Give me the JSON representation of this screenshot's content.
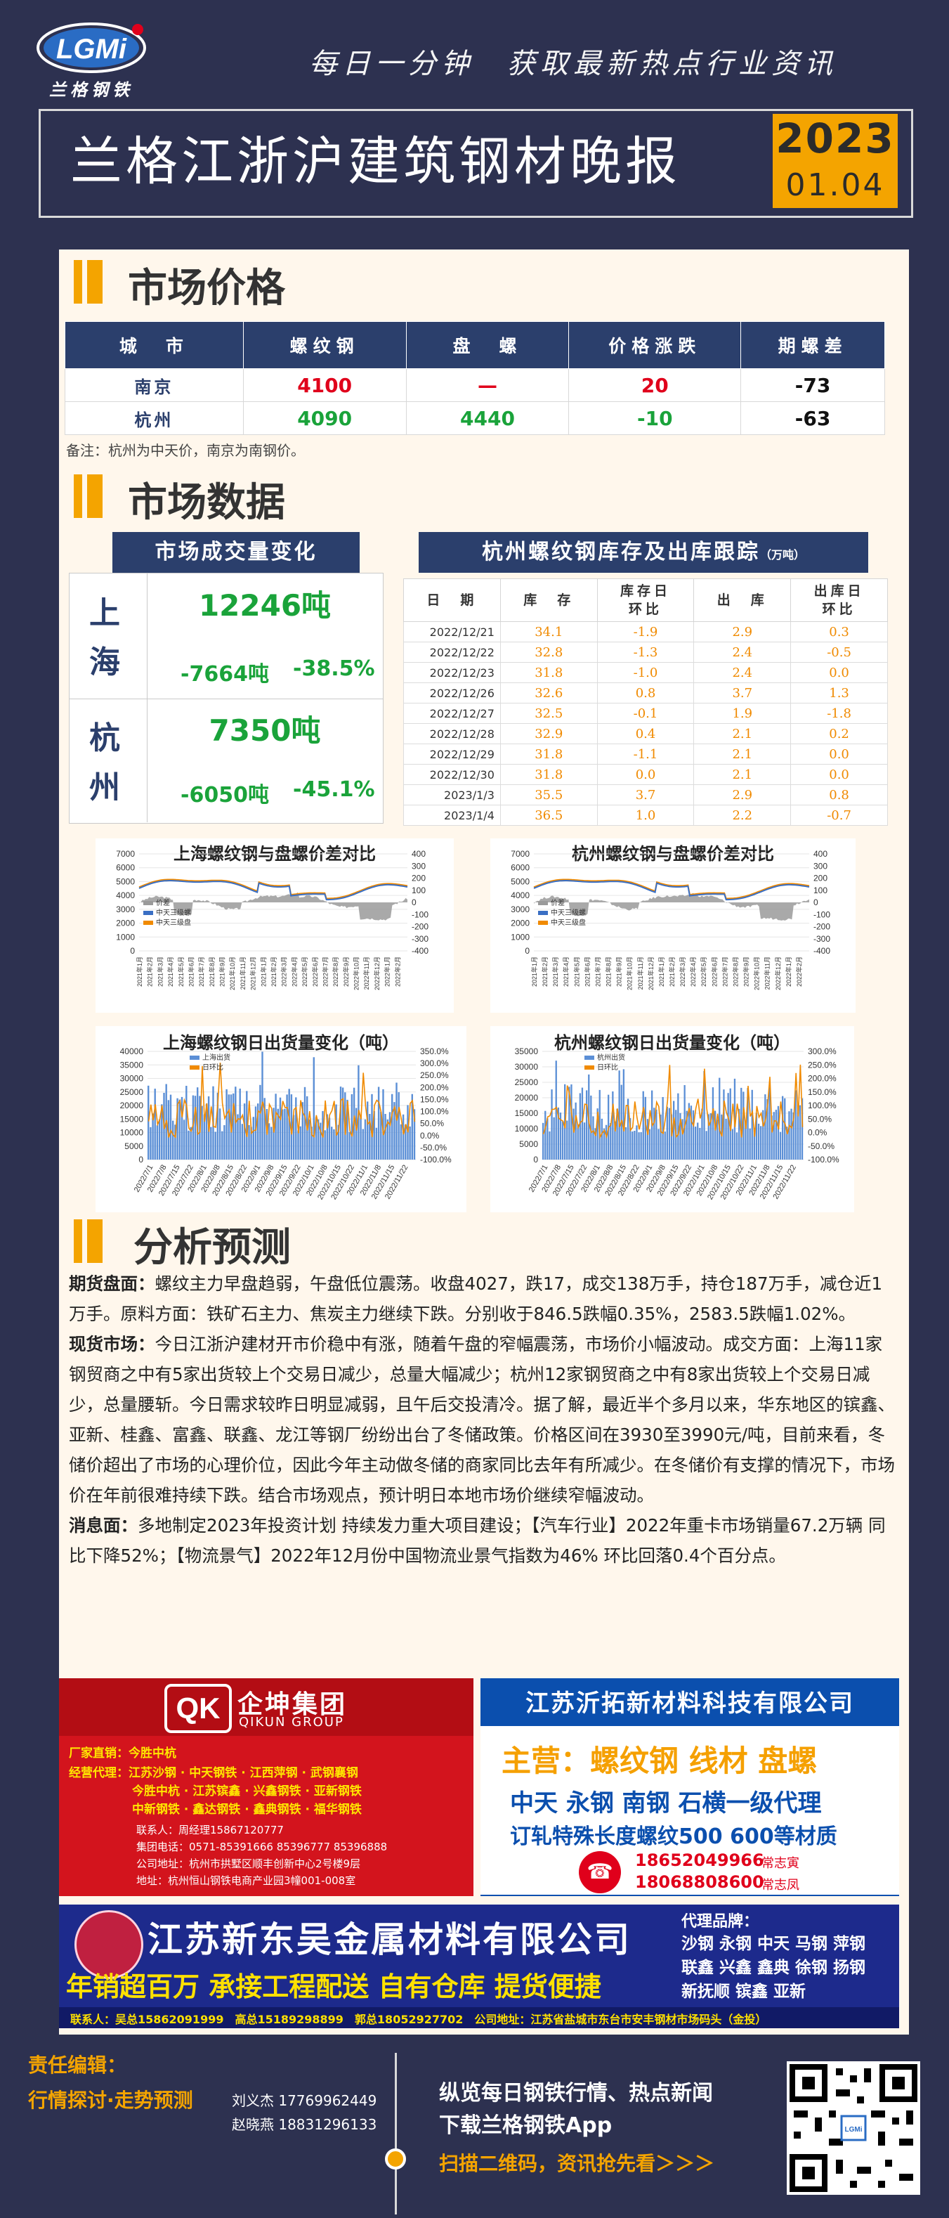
{
  "brand": {
    "logo_text": "LGMi",
    "logo_sub": "兰格钢铁"
  },
  "slogan": "每日一分钟　获取最新热点行业资讯",
  "title": "兰格江浙沪建筑钢材晚报",
  "date": {
    "year": "2023",
    "mmdd": "01.04"
  },
  "sections": {
    "price": "市场价格",
    "data": "市场数据",
    "analysis": "分析预测"
  },
  "price_table": {
    "headers": [
      "城　市",
      "螺纹钢",
      "盘　螺",
      "价格涨跌",
      "期螺差"
    ],
    "rows": [
      {
        "city": "南京",
        "rebar": "4100",
        "coil": "—",
        "change": "20",
        "spread": "-73"
      },
      {
        "city": "杭州",
        "rebar": "4090",
        "coil": "4440",
        "change": "-10",
        "spread": "-63"
      }
    ],
    "note": "备注：杭州为中天价，南京为南钢价。"
  },
  "volume": {
    "title": "市场成交量变化",
    "rows": [
      {
        "city": "上海",
        "volume": "12246吨",
        "delta": "-7664吨",
        "pct": "-38.5%"
      },
      {
        "city": "杭州",
        "volume": "7350吨",
        "delta": "-6050吨",
        "pct": "-45.1%"
      }
    ]
  },
  "inventory": {
    "title": "杭州螺纹钢库存及出库跟踪",
    "unit": "（万吨）",
    "headers": [
      "日　期",
      "库　存",
      "库存日环比",
      "出　库",
      "出库日环比"
    ],
    "rows": [
      [
        "2022/12/21",
        "34.1",
        "-1.9",
        "2.9",
        "0.3"
      ],
      [
        "2022/12/22",
        "32.8",
        "-1.3",
        "2.4",
        "-0.5"
      ],
      [
        "2022/12/23",
        "31.8",
        "-1.0",
        "2.4",
        "0.0"
      ],
      [
        "2022/12/26",
        "32.6",
        "0.8",
        "3.7",
        "1.3"
      ],
      [
        "2022/12/27",
        "32.5",
        "-0.1",
        "1.9",
        "-1.8"
      ],
      [
        "2022/12/28",
        "32.9",
        "0.4",
        "2.1",
        "0.2"
      ],
      [
        "2022/12/29",
        "31.8",
        "-1.1",
        "2.1",
        "0.0"
      ],
      [
        "2022/12/30",
        "31.8",
        "0.0",
        "2.1",
        "0.0"
      ],
      [
        "2023/1/3",
        "35.5",
        "3.7",
        "2.9",
        "0.8"
      ],
      [
        "2023/1/4",
        "36.5",
        "1.0",
        "2.2",
        "-0.7"
      ]
    ]
  },
  "colors": {
    "navy": "#2b3f6c",
    "orange": "#f4a400",
    "red": "#e0001b",
    "green": "#1aa33a"
  },
  "chart_data": [
    {
      "type": "line",
      "title": "上海螺纹钢与盘螺价差对比",
      "series": [
        {
          "name": "价差"
        },
        {
          "name": "中天三级螺"
        },
        {
          "name": "中天三级盘"
        }
      ],
      "y_left_ticks": [
        "7000",
        "6000",
        "5000",
        "4000",
        "3000",
        "2000",
        "1000",
        "0"
      ],
      "y_right_ticks": [
        "400",
        "300",
        "200",
        "100",
        "0",
        "-100",
        "-200",
        "-300",
        "-400"
      ]
    },
    {
      "type": "line",
      "title": "杭州螺纹钢与盘螺价差对比",
      "series": [
        {
          "name": "价差"
        },
        {
          "name": "中天三级螺"
        },
        {
          "name": "中天三级盘"
        }
      ],
      "y_left_ticks": [
        "7000",
        "6000",
        "5000",
        "4000",
        "3000",
        "2000",
        "1000",
        "0"
      ],
      "y_right_ticks": [
        "400",
        "300",
        "200",
        "100",
        "0",
        "-100",
        "-200",
        "-300",
        "-400"
      ]
    },
    {
      "type": "bar",
      "title": "上海螺纹钢日出货量变化（吨）",
      "series": [
        {
          "name": "上海出货"
        },
        {
          "name": "日环比"
        }
      ],
      "y_left_ticks": [
        "40000",
        "35000",
        "30000",
        "25000",
        "20000",
        "15000",
        "10000",
        "5000",
        "0"
      ],
      "y_right_ticks": [
        "350.0%",
        "300.0%",
        "250.0%",
        "200.0%",
        "150.0%",
        "100.0%",
        "50.0%",
        "0.0%",
        "-50.0%",
        "-100.0%"
      ]
    },
    {
      "type": "bar",
      "title": "杭州螺纹钢日出货量变化（吨）",
      "series": [
        {
          "name": "杭州出货"
        },
        {
          "name": "日环比"
        }
      ],
      "y_left_ticks": [
        "35000",
        "30000",
        "25000",
        "20000",
        "15000",
        "10000",
        "5000",
        "0"
      ],
      "y_right_ticks": [
        "300.0%",
        "250.0%",
        "200.0%",
        "150.0%",
        "100.0%",
        "50.0%",
        "0.0%",
        "-50.0%",
        "-100.0%"
      ]
    }
  ],
  "analysis": {
    "futures_label": "期货盘面：",
    "futures": "螺纹主力早盘趋弱，午盘低位震荡。收盘4027，跌17，成交138万手，持仓187万手，减仓近1万手。原料方面：铁矿石主力、焦炭主力继续下跌。分别收于846.5跌幅0.35%，2583.5跌幅1.02%。",
    "spot_label": "现货市场：",
    "spot": "今日江浙沪建材开市价稳中有涨，随着午盘的窄幅震荡，市场价小幅波动。成交方面：上海11家钢贸商之中有5家出货较上个交易日减少，总量大幅减少；杭州12家钢贸商之中有8家出货较上个交易日减少，总量腰斩。今日需求较昨日明显减弱，且午后交投清冷。据了解，最近半个多月以来，华东地区的镔鑫、亚新、桂鑫、富鑫、联鑫、龙江等钢厂纷纷出台了冬储政策。价格区间在3930至3990元/吨，目前来看，冬储价超出了市场的心理价位，因此今年主动做冬储的商家同比去年有所减少。在冬储价有支撑的情况下，市场价在年前很难持续下跌。结合市场观点，预计明日本地市场价继续窄幅波动。",
    "news_label": "消息面：",
    "news": "多地制定2023年投资计划 持续发力重大项目建设；【汽车行业】2022年重卡市场销量67.2万辆 同比下降52%；【物流景气】2022年12月份中国物流业景气指数为46% 环比回落0.4个百分点。"
  },
  "ads": {
    "qikun": {
      "name": "企坤集团",
      "en": "QIKUN GROUP",
      "l1": "厂家直销：今胜中杭",
      "l2": "经营代理：江苏沙钢 · 中天钢铁 · 江西萍钢 · 武钢襄钢",
      "l3": "今胜中杭 · 江苏镔鑫 · 兴鑫钢铁 · 亚新钢铁",
      "l4": "中新钢铁 · 鑫达钢铁 · 鑫典钢铁 · 福华钢铁",
      "c1": "联系人：周经理15867120777",
      "c2": "集团电话：0571-85391666 85396777 85396888",
      "c3": "公司地址：杭州市拱墅区顺丰创新中心2号楼9层",
      "c4": "地址：杭州恒山钢铁电商产业园3幢001-008室"
    },
    "yituo": {
      "name": "江苏沂拓新材料科技有限公司",
      "main": "主营：螺纹钢 线材 盘螺",
      "agents": "中天 永钢 南钢 石横一级代理",
      "custom": "订轧特殊长度螺纹500 600等材质",
      "phone1": "18652049966",
      "who1": "常志寅",
      "phone2": "18068808600",
      "who2": "常志凤"
    },
    "xindongwu": {
      "name": "江苏新东吴金属材料有限公司",
      "slogan": "年销超百万 承接工程配送 自有仓库 提货便捷",
      "brands_title": "代理品牌：",
      "brands1": "沙钢 永钢 中天 马钢 萍钢",
      "brands2": "联鑫 兴鑫 鑫典 徐钢 扬钢",
      "brands3": "新抚顺 镔鑫 亚新",
      "contact": "联系人：吴总15862091999　高总15189298899　郭总18052927702　公司地址：江苏省盐城市东台市安丰钢材市场码头（金投）"
    }
  },
  "footer": {
    "editor_label": "责任编辑：",
    "topic": "行情探讨·走势预测",
    "editor1": "刘义杰 17769962449",
    "editor2": "赵晓燕 18831296133",
    "promo1": "纵览每日钢铁行情、热点新闻",
    "promo2": "下载兰格钢铁App",
    "promo3": "扫描二维码，资讯抢先看＞＞＞"
  }
}
